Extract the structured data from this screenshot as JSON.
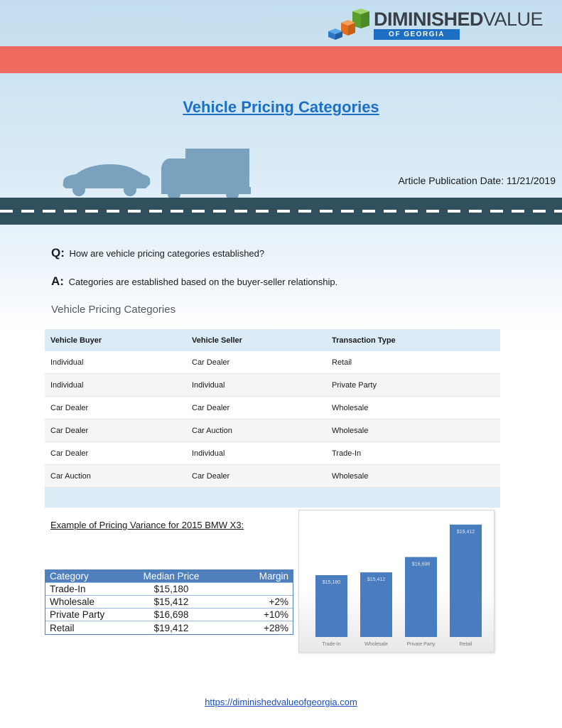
{
  "logo": {
    "main_bold": "DIMINISHED",
    "main_light": "VALUE",
    "sub": "OF GEORGIA"
  },
  "colors": {
    "red_band": "#ee6b5d",
    "title_blue": "#1d6fc4",
    "road": "#31505d",
    "bar": "#4a7cc0",
    "table_header": "#dcecf7",
    "price_header": "#4f80bd"
  },
  "title": "Vehicle Pricing Categories",
  "publication": "Article Publication Date: 11/21/2019",
  "qa": {
    "q_letter": "Q:",
    "q_text": "How are vehicle pricing categories established?",
    "a_letter": "A:",
    "a_text": "Categories are established based on the buyer-seller relationship."
  },
  "categories_section_title": "Vehicle Pricing Categories",
  "categories_table": {
    "headers": [
      "Vehicle Buyer",
      "Vehicle Seller",
      "Transaction Type"
    ],
    "rows": [
      [
        "Individual",
        "Car Dealer",
        "Retail"
      ],
      [
        "Individual",
        "Individual",
        "Private Party"
      ],
      [
        "Car Dealer",
        "Car Dealer",
        "Wholesale"
      ],
      [
        "Car Dealer",
        "Car Auction",
        "Wholesale"
      ],
      [
        "Car Dealer",
        "Individual",
        "Trade-In"
      ],
      [
        "Car Auction",
        "Car Dealer",
        "Wholesale"
      ]
    ]
  },
  "example_title": "Example of Pricing Variance for 2015 BMW X3:",
  "price_table": {
    "headers": [
      "Category",
      "Median Price",
      "Margin"
    ],
    "rows": [
      [
        "Trade-In",
        "$15,180",
        ""
      ],
      [
        "Wholesale",
        "$15,412",
        "+2%"
      ],
      [
        "Private Party",
        "$16,698",
        "+10%"
      ],
      [
        "Retail",
        "$19,412",
        "+28%"
      ]
    ]
  },
  "chart_data": {
    "type": "bar",
    "categories": [
      "Trade-In",
      "Wholesale",
      "Private Party",
      "Retail"
    ],
    "values": [
      15180,
      15412,
      16698,
      19412
    ],
    "data_labels": [
      "$15,180",
      "$15,412",
      "$16,698",
      "$19,412"
    ],
    "title": "",
    "xlabel": "",
    "ylabel": "",
    "ylim": [
      10000,
      20000
    ],
    "grid": false,
    "legend": "none"
  },
  "footer_url": "https://diminishedvalueofgeorgia.com"
}
